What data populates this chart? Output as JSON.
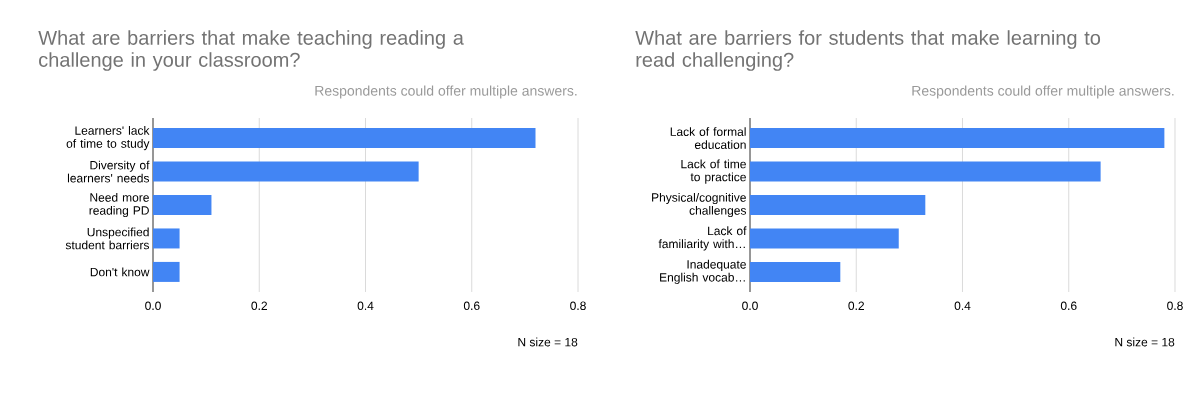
{
  "chart_data": [
    {
      "type": "bar",
      "orientation": "horizontal",
      "title": "What are barriers that make teaching reading a challenge in your classroom?",
      "subtitle": "Respondents could offer multiple answers.",
      "categories": [
        "Learners' lack of time to study",
        "Diversity of learners' needs",
        "Need more reading PD",
        "Unspecified student barriers",
        "Don't know"
      ],
      "values": [
        0.72,
        0.5,
        0.11,
        0.05,
        0.05
      ],
      "color": "#4285f4",
      "xlim": [
        0,
        0.8
      ],
      "xticks": [
        {
          "value": 0,
          "label": "0.0"
        },
        {
          "value": 0.2,
          "label": "0.2"
        },
        {
          "value": 0.4,
          "label": "0.4"
        },
        {
          "value": 0.6,
          "label": "0.6"
        },
        {
          "value": 0.8,
          "label": "0.8"
        }
      ],
      "grid": "x",
      "annotations": [
        "N size = 18"
      ]
    },
    {
      "type": "bar",
      "orientation": "horizontal",
      "title": "What are barriers for students that make learning to read challenging?",
      "subtitle": "Respondents could offer multiple answers.",
      "categories": [
        "Lack of formal education",
        "Lack of time to practice",
        "Physical/cognitive challenges",
        "Lack of familiarity with…",
        "Inadequate English vocab…"
      ],
      "values": [
        0.78,
        0.66,
        0.33,
        0.28,
        0.17
      ],
      "color": "#4285f4",
      "xlim": [
        0,
        0.8
      ],
      "xticks": [
        {
          "value": 0,
          "label": "0.0"
        },
        {
          "value": 0.2,
          "label": "0.2"
        },
        {
          "value": 0.4,
          "label": "0.4"
        },
        {
          "value": 0.6,
          "label": "0.6"
        },
        {
          "value": 0.8,
          "label": "0.8"
        }
      ],
      "grid": "x",
      "annotations": [
        "N size = 18"
      ]
    }
  ]
}
